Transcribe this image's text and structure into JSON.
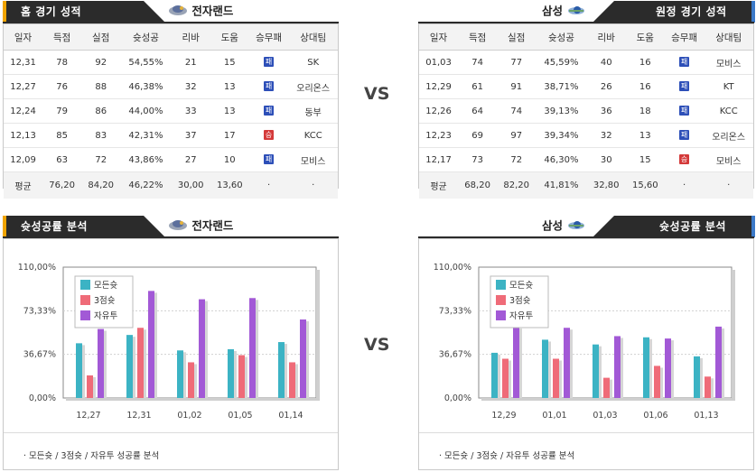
{
  "home": {
    "header": "홈 경기 성적",
    "team": "전자랜드",
    "columns": [
      "일자",
      "득점",
      "실점",
      "슛성공",
      "리바",
      "도움",
      "승무패",
      "상대팀"
    ],
    "rows": [
      [
        "12,31",
        "78",
        "92",
        "54,55%",
        "21",
        "15",
        "패",
        "SK"
      ],
      [
        "12,27",
        "76",
        "88",
        "46,38%",
        "32",
        "13",
        "패",
        "오리온스"
      ],
      [
        "12,24",
        "79",
        "86",
        "44,00%",
        "33",
        "13",
        "패",
        "동부"
      ],
      [
        "12,13",
        "85",
        "83",
        "42,31%",
        "37",
        "17",
        "승",
        "KCC"
      ],
      [
        "12,09",
        "63",
        "72",
        "43,86%",
        "27",
        "10",
        "패",
        "모비스"
      ]
    ],
    "avg": [
      "평균",
      "76,20",
      "84,20",
      "46,22%",
      "30,00",
      "13,60",
      "·",
      "·"
    ]
  },
  "away": {
    "header": "원정 경기 성적",
    "team": "삼성",
    "columns": [
      "일자",
      "득점",
      "실점",
      "슛성공",
      "리바",
      "도움",
      "승무패",
      "상대팀"
    ],
    "rows": [
      [
        "01,03",
        "74",
        "77",
        "45,59%",
        "40",
        "16",
        "패",
        "모비스"
      ],
      [
        "12,29",
        "61",
        "91",
        "38,71%",
        "26",
        "16",
        "패",
        "KT"
      ],
      [
        "12,26",
        "64",
        "74",
        "39,13%",
        "36",
        "18",
        "패",
        "KCC"
      ],
      [
        "12,23",
        "69",
        "97",
        "39,34%",
        "32",
        "13",
        "패",
        "오리온스"
      ],
      [
        "12,17",
        "73",
        "72",
        "46,30%",
        "30",
        "15",
        "승",
        "모비스"
      ]
    ],
    "avg": [
      "평균",
      "68,20",
      "82,20",
      "41,81%",
      "32,80",
      "15,60",
      "·",
      "·"
    ]
  },
  "vs_label": "VS",
  "home_chart": {
    "header": "슛성공률 분석",
    "team": "전자랜드",
    "note": "·  모든슛 / 3점슛 / 자유투 성공률 분석"
  },
  "away_chart": {
    "header": "슛성공률 분석",
    "team": "삼성",
    "note": "·  모든슛 / 3점슛 / 자유투 성공률 분석"
  },
  "colors": {
    "all": "#3cb3c4",
    "three": "#ef6b78",
    "free": "#a259d6",
    "win": "#d43a3a",
    "loss": "#2d4fb8"
  },
  "chart_data": [
    {
      "type": "bar",
      "title": "",
      "categories": [
        "12,27",
        "12,31",
        "01,02",
        "01,05",
        "01,14"
      ],
      "series": [
        {
          "name": "모든슛",
          "values": [
            46,
            53,
            40,
            41,
            47
          ]
        },
        {
          "name": "3점슛",
          "values": [
            19,
            59,
            30,
            36,
            30
          ]
        },
        {
          "name": "자유투",
          "values": [
            58,
            90,
            83,
            84,
            66
          ]
        }
      ],
      "ylim": [
        0,
        110
      ],
      "yticks": [
        "0,00%",
        "36,67%",
        "73,33%",
        "110,00%"
      ],
      "legend": "top-left",
      "grid": true
    },
    {
      "type": "bar",
      "title": "",
      "categories": [
        "12,29",
        "01,01",
        "01,03",
        "01,06",
        "01,13"
      ],
      "series": [
        {
          "name": "모든슛",
          "values": [
            38,
            49,
            45,
            51,
            35
          ]
        },
        {
          "name": "3점슛",
          "values": [
            33,
            33,
            17,
            27,
            18
          ]
        },
        {
          "name": "자유투",
          "values": [
            60,
            59,
            52,
            50,
            60
          ]
        }
      ],
      "ylim": [
        0,
        110
      ],
      "yticks": [
        "0,00%",
        "36,67%",
        "73,33%",
        "110,00%"
      ],
      "legend": "top-left",
      "grid": true
    }
  ]
}
